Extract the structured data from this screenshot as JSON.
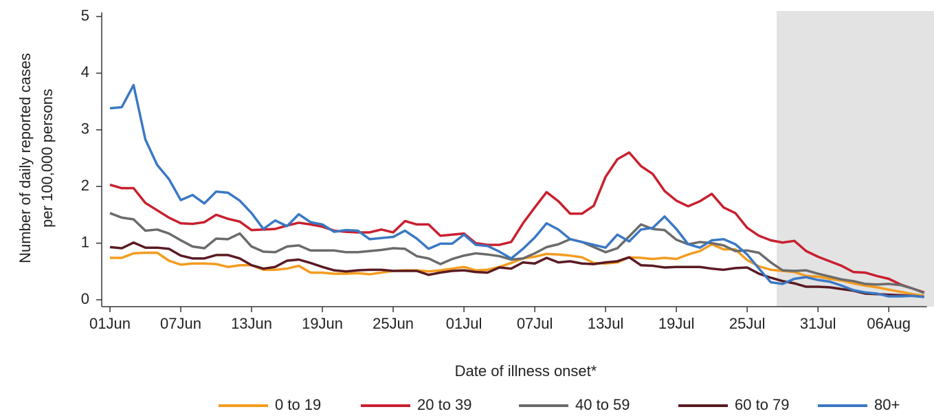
{
  "chart_data": {
    "type": "line",
    "y_label": [
      "Number of daily reported cases",
      "per 100,000 persons"
    ],
    "x_label": "Date of illness onset*",
    "categories": [
      "01Jun",
      null,
      null,
      null,
      null,
      null,
      "07Jun",
      null,
      null,
      null,
      null,
      null,
      "13Jun",
      null,
      null,
      null,
      null,
      null,
      "19Jun",
      null,
      null,
      null,
      null,
      null,
      "25Jun",
      null,
      null,
      null,
      null,
      null,
      "01Jul",
      null,
      null,
      null,
      null,
      null,
      "07Jul",
      null,
      null,
      null,
      null,
      null,
      "13Jul",
      null,
      null,
      null,
      null,
      null,
      "19Jul",
      null,
      null,
      null,
      null,
      null,
      "25Jul",
      null,
      null,
      null,
      null,
      null,
      "31Jul",
      null,
      null,
      null,
      null,
      null,
      "06Aug",
      null,
      null,
      null
    ],
    "ylim": [
      0,
      5
    ],
    "yticks": [
      0,
      1,
      2,
      3,
      4,
      5
    ],
    "shaded_from": 56.5,
    "legend": "bottom",
    "series": [
      {
        "name": "0 to 19",
        "color": "#f39c1f",
        "values": [
          0.74,
          0.74,
          0.82,
          0.83,
          0.83,
          0.69,
          0.62,
          0.64,
          0.64,
          0.63,
          0.58,
          0.61,
          0.61,
          0.53,
          0.53,
          0.55,
          0.6,
          0.48,
          0.48,
          0.46,
          0.46,
          0.47,
          0.45,
          0.48,
          0.51,
          0.52,
          0.52,
          0.5,
          0.52,
          0.55,
          0.58,
          0.52,
          0.53,
          0.58,
          0.65,
          0.73,
          0.76,
          0.81,
          0.8,
          0.78,
          0.75,
          0.65,
          0.64,
          0.66,
          0.75,
          0.74,
          0.72,
          0.74,
          0.72,
          0.8,
          0.86,
          0.98,
          0.89,
          0.89,
          0.7,
          0.59,
          0.53,
          0.51,
          0.49,
          0.42,
          0.41,
          0.37,
          0.34,
          0.29,
          0.25,
          0.22,
          0.18,
          0.14,
          0.1,
          0.07
        ]
      },
      {
        "name": "20 to 39",
        "color": "#c8202f",
        "values": [
          2.03,
          1.97,
          1.97,
          1.71,
          1.58,
          1.45,
          1.35,
          1.34,
          1.37,
          1.5,
          1.43,
          1.38,
          1.23,
          1.24,
          1.25,
          1.31,
          1.36,
          1.33,
          1.29,
          1.22,
          1.2,
          1.19,
          1.19,
          1.24,
          1.19,
          1.39,
          1.33,
          1.33,
          1.13,
          1.15,
          1.17,
          1.0,
          0.97,
          0.97,
          1.02,
          1.35,
          1.63,
          1.9,
          1.74,
          1.52,
          1.52,
          1.66,
          2.17,
          2.48,
          2.6,
          2.36,
          2.22,
          1.92,
          1.75,
          1.65,
          1.74,
          1.87,
          1.63,
          1.53,
          1.27,
          1.13,
          1.05,
          1.01,
          1.04,
          0.86,
          0.76,
          0.68,
          0.6,
          0.49,
          0.48,
          0.42,
          0.37,
          0.27,
          0.2,
          0.13
        ]
      },
      {
        "name": "40 to 59",
        "color": "#6b6b6b",
        "values": [
          1.53,
          1.45,
          1.42,
          1.22,
          1.24,
          1.17,
          1.05,
          0.94,
          0.91,
          1.08,
          1.07,
          1.17,
          0.94,
          0.85,
          0.84,
          0.94,
          0.96,
          0.87,
          0.87,
          0.87,
          0.84,
          0.84,
          0.86,
          0.88,
          0.91,
          0.9,
          0.77,
          0.73,
          0.63,
          0.72,
          0.78,
          0.82,
          0.8,
          0.77,
          0.71,
          0.73,
          0.82,
          0.93,
          0.98,
          1.07,
          1.02,
          0.93,
          0.84,
          0.91,
          1.12,
          1.33,
          1.25,
          1.23,
          1.06,
          0.98,
          1.02,
          1.0,
          0.96,
          0.86,
          0.87,
          0.83,
          0.66,
          0.52,
          0.51,
          0.52,
          0.46,
          0.41,
          0.36,
          0.33,
          0.28,
          0.27,
          0.28,
          0.26,
          0.2,
          0.12
        ]
      },
      {
        "name": "60 to 79",
        "color": "#5a1a22",
        "values": [
          0.93,
          0.91,
          1.01,
          0.92,
          0.92,
          0.9,
          0.78,
          0.73,
          0.73,
          0.79,
          0.79,
          0.73,
          0.61,
          0.55,
          0.58,
          0.69,
          0.71,
          0.65,
          0.58,
          0.52,
          0.5,
          0.52,
          0.53,
          0.53,
          0.51,
          0.51,
          0.51,
          0.44,
          0.48,
          0.51,
          0.52,
          0.49,
          0.48,
          0.57,
          0.55,
          0.66,
          0.64,
          0.74,
          0.66,
          0.68,
          0.64,
          0.63,
          0.66,
          0.68,
          0.75,
          0.61,
          0.6,
          0.57,
          0.58,
          0.58,
          0.58,
          0.55,
          0.53,
          0.56,
          0.57,
          0.46,
          0.39,
          0.33,
          0.29,
          0.23,
          0.23,
          0.22,
          0.19,
          0.16,
          0.11,
          0.1,
          0.09,
          0.08,
          0.07,
          0.05
        ]
      },
      {
        "name": "80+",
        "color": "#3a78c4",
        "values": [
          3.38,
          3.4,
          3.79,
          2.83,
          2.38,
          2.13,
          1.76,
          1.85,
          1.7,
          1.91,
          1.89,
          1.75,
          1.53,
          1.25,
          1.4,
          1.3,
          1.51,
          1.37,
          1.33,
          1.2,
          1.23,
          1.22,
          1.07,
          1.09,
          1.11,
          1.22,
          1.08,
          0.9,
          0.99,
          0.99,
          1.15,
          0.97,
          0.95,
          0.85,
          0.73,
          0.9,
          1.1,
          1.35,
          1.24,
          1.07,
          1.02,
          0.97,
          0.92,
          1.15,
          1.03,
          1.24,
          1.27,
          1.47,
          1.25,
          0.98,
          0.92,
          1.05,
          1.07,
          0.98,
          0.8,
          0.55,
          0.31,
          0.28,
          0.37,
          0.4,
          0.35,
          0.32,
          0.25,
          0.17,
          0.13,
          0.11,
          0.06,
          0.06,
          0.07,
          0.05
        ]
      }
    ]
  }
}
